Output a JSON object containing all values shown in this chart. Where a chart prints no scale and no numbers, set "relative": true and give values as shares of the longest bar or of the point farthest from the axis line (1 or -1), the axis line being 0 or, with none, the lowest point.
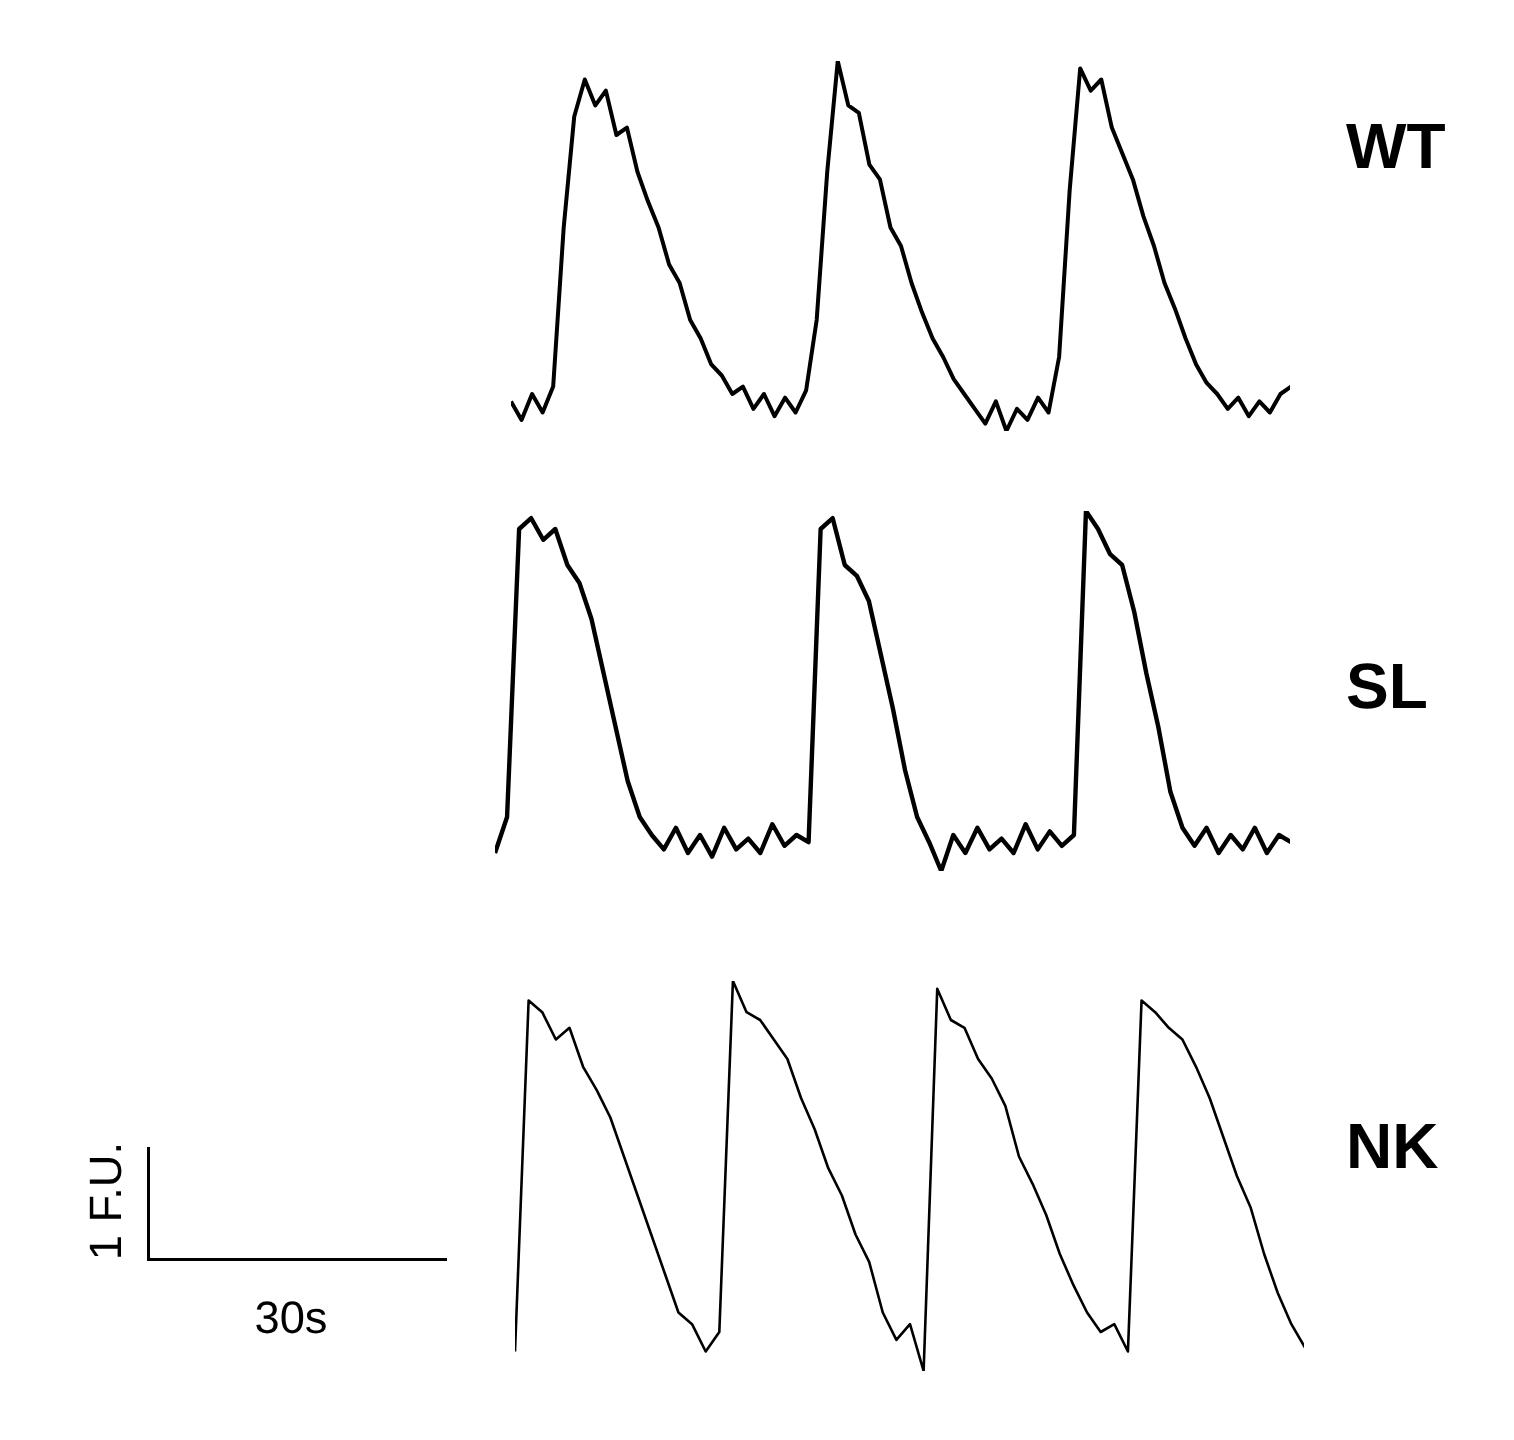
{
  "chart_data": [
    {
      "type": "line",
      "relative": true,
      "categories": [
        null,
        null,
        null,
        null,
        null,
        null,
        null,
        null,
        null,
        null,
        null,
        null,
        null,
        null,
        null,
        null,
        null,
        null,
        null,
        null,
        null,
        null,
        null,
        null,
        null,
        null,
        null,
        null,
        null,
        null,
        null,
        null,
        null,
        null,
        null,
        null,
        null,
        null,
        null,
        null,
        null,
        null,
        null,
        null,
        null,
        null,
        null,
        null,
        null,
        null,
        null,
        null,
        null,
        null,
        null,
        null,
        null,
        null,
        null,
        null,
        null,
        null,
        null,
        null,
        null,
        null,
        null,
        null,
        null,
        null,
        null,
        null,
        null,
        null,
        null
      ],
      "series": [
        {
          "name": "WT",
          "color": "#000000",
          "values": [
            0.08,
            0.03,
            0.1,
            0.05,
            0.12,
            0.55,
            0.85,
            0.95,
            0.88,
            0.92,
            0.8,
            0.82,
            0.7,
            0.62,
            0.55,
            0.45,
            0.4,
            0.3,
            0.25,
            0.18,
            0.15,
            0.1,
            0.12,
            0.06,
            0.1,
            0.04,
            0.09,
            0.05,
            0.11,
            0.3,
            0.7,
            1.0,
            0.88,
            0.86,
            0.72,
            0.68,
            0.55,
            0.5,
            0.4,
            0.32,
            0.25,
            0.2,
            0.14,
            0.1,
            0.06,
            0.02,
            0.08,
            0.0,
            0.06,
            0.03,
            0.09,
            0.05,
            0.2,
            0.65,
            0.98,
            0.92,
            0.95,
            0.82,
            0.75,
            0.68,
            0.58,
            0.5,
            0.4,
            0.33,
            0.25,
            0.18,
            0.13,
            0.1,
            0.06,
            0.09,
            0.04,
            0.08,
            0.05,
            0.1,
            0.12
          ]
        }
      ]
    },
    {
      "type": "line",
      "relative": true,
      "categories": [
        null,
        null,
        null,
        null,
        null,
        null,
        null,
        null,
        null,
        null,
        null,
        null,
        null,
        null,
        null,
        null,
        null,
        null,
        null,
        null,
        null,
        null,
        null,
        null,
        null,
        null,
        null,
        null,
        null,
        null,
        null,
        null,
        null,
        null,
        null,
        null,
        null,
        null,
        null,
        null,
        null,
        null,
        null,
        null,
        null,
        null,
        null,
        null,
        null,
        null,
        null,
        null,
        null,
        null,
        null,
        null,
        null,
        null,
        null,
        null,
        null,
        null,
        null,
        null,
        null,
        null,
        null
      ],
      "series": [
        {
          "name": "SL",
          "color": "#000000",
          "values": [
            0.05,
            0.15,
            0.95,
            0.98,
            0.92,
            0.95,
            0.85,
            0.8,
            0.7,
            0.55,
            0.4,
            0.25,
            0.15,
            0.1,
            0.06,
            0.12,
            0.05,
            0.1,
            0.04,
            0.12,
            0.06,
            0.09,
            0.05,
            0.13,
            0.07,
            0.1,
            0.08,
            0.95,
            0.98,
            0.85,
            0.82,
            0.75,
            0.6,
            0.45,
            0.28,
            0.15,
            0.08,
            0.0,
            0.1,
            0.05,
            0.12,
            0.06,
            0.09,
            0.05,
            0.13,
            0.06,
            0.11,
            0.07,
            0.1,
            1.0,
            0.95,
            0.88,
            0.85,
            0.72,
            0.55,
            0.4,
            0.22,
            0.12,
            0.07,
            0.12,
            0.05,
            0.1,
            0.06,
            0.12,
            0.05,
            0.1,
            0.08
          ]
        }
      ]
    },
    {
      "type": "line",
      "relative": true,
      "categories": [
        null,
        null,
        null,
        null,
        null,
        null,
        null,
        null,
        null,
        null,
        null,
        null,
        null,
        null,
        null,
        null,
        null,
        null,
        null,
        null,
        null,
        null,
        null,
        null,
        null,
        null,
        null,
        null,
        null,
        null,
        null,
        null,
        null,
        null,
        null,
        null,
        null,
        null,
        null,
        null,
        null,
        null,
        null,
        null,
        null,
        null,
        null,
        null,
        null,
        null,
        null,
        null,
        null,
        null,
        null,
        null,
        null,
        null,
        null
      ],
      "series": [
        {
          "name": "NK",
          "color": "#000000",
          "values": [
            0.05,
            0.95,
            0.92,
            0.85,
            0.88,
            0.78,
            0.72,
            0.65,
            0.55,
            0.45,
            0.35,
            0.25,
            0.15,
            0.12,
            0.05,
            0.1,
            1.0,
            0.92,
            0.9,
            0.85,
            0.8,
            0.7,
            0.62,
            0.52,
            0.45,
            0.35,
            0.28,
            0.15,
            0.08,
            0.12,
            0.0,
            0.98,
            0.9,
            0.88,
            0.8,
            0.75,
            0.68,
            0.55,
            0.48,
            0.4,
            0.3,
            0.22,
            0.15,
            0.1,
            0.12,
            0.05,
            0.95,
            0.92,
            0.88,
            0.85,
            0.78,
            0.7,
            0.6,
            0.5,
            0.42,
            0.3,
            0.2,
            0.12,
            0.06
          ]
        }
      ],
      "annotations": [
        "1 F.U.",
        "30s"
      ]
    }
  ]
}
